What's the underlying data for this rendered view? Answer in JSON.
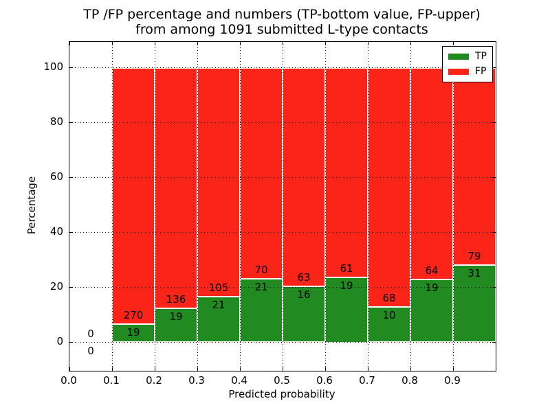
{
  "chart_data": {
    "type": "bar",
    "stacked": true,
    "title_line1": "TP /FP percentage and numbers (TP-bottom value, FP-upper)",
    "title_line2": "from among 1091 submitted L-type contacts",
    "xlabel": "Predicted probability",
    "ylabel": "Percentage",
    "xlim": [
      0.0,
      1.0
    ],
    "ylim": [
      -10,
      110
    ],
    "x_ticks": [
      0.0,
      0.1,
      0.2,
      0.3,
      0.4,
      0.5,
      0.6,
      0.7,
      0.8,
      0.9
    ],
    "y_ticks": [
      0,
      20,
      40,
      60,
      80,
      100
    ],
    "grid": "dotted black, horizontal and vertical, drawn over bars",
    "bin_width": 0.1,
    "total_submitted": 1091,
    "value_semantics": "Each bar is one predicted-probability bin; green bottom = TP share of bin (%), red top = FP share, stacking to 100%. Printed numbers are raw counts: TP below the boundary, FP above it. The 0.0-0.1 bin is empty (0/0).",
    "categories": [
      0.0,
      0.1,
      0.2,
      0.3,
      0.4,
      0.5,
      0.6,
      0.7,
      0.8,
      0.9
    ],
    "series": [
      {
        "name": "TP",
        "color": "#218a21",
        "counts": [
          0,
          19,
          19,
          21,
          21,
          16,
          19,
          10,
          19,
          31
        ]
      },
      {
        "name": "FP",
        "color": "#fa2418",
        "counts": [
          0,
          270,
          136,
          105,
          70,
          63,
          61,
          68,
          64,
          79
        ]
      }
    ],
    "tp_percent_by_bin": [
      0,
      6.57,
      12.26,
      16.67,
      23.08,
      20.25,
      23.75,
      12.82,
      22.89,
      28.18
    ],
    "legend": {
      "position": "upper right",
      "entries": [
        {
          "label": "TP",
          "color": "#218a21"
        },
        {
          "label": "FP",
          "color": "#fa2418"
        }
      ]
    }
  },
  "colors": {
    "tp_green": "#218a21",
    "fp_red": "#fa2418",
    "axis": "#000000",
    "background": "#ffffff"
  }
}
